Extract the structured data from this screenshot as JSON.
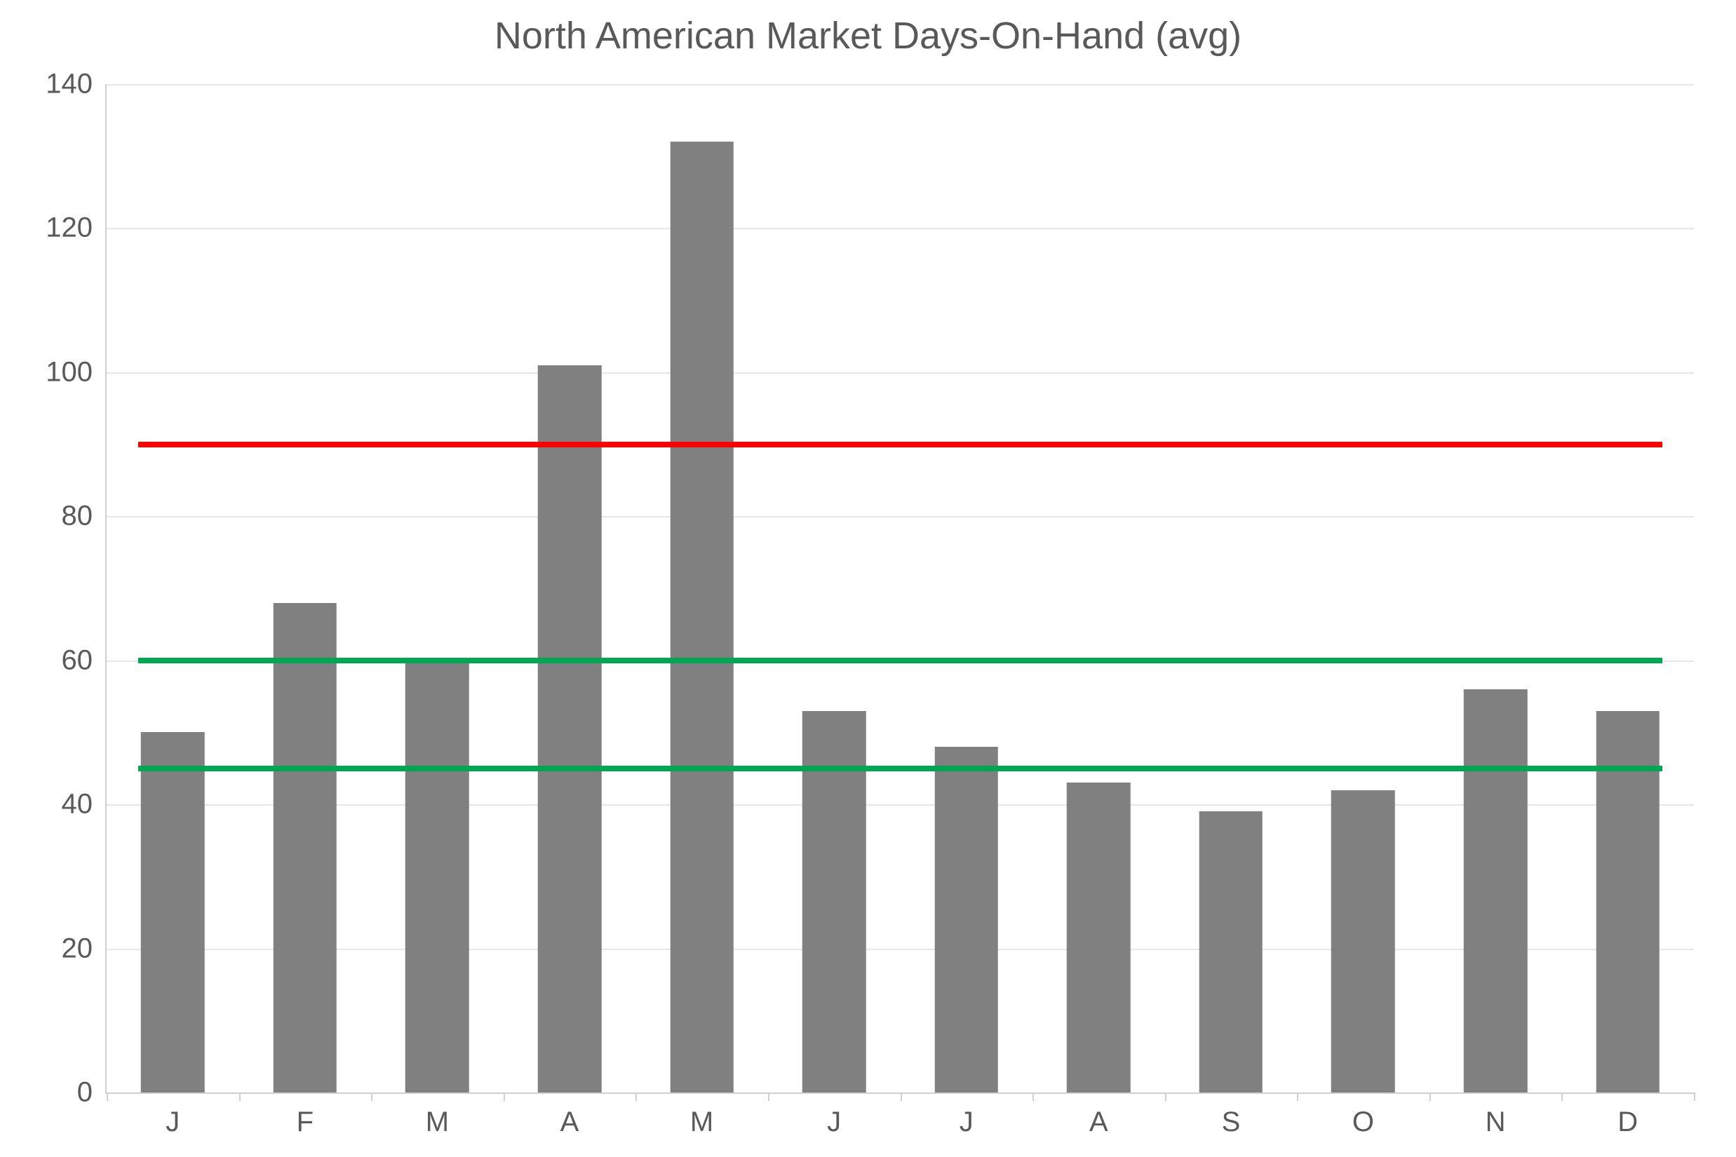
{
  "chart": {
    "type": "bar",
    "title": "North American Market Days-On-Hand (avg)",
    "title_fontsize": 54,
    "title_color": "#595959",
    "background_color": "#ffffff",
    "plot_background": "#ffffff",
    "grid_color": "#e6e6e6",
    "axis_color": "#d0d0d0",
    "categories": [
      "J",
      "F",
      "M",
      "A",
      "M",
      "J",
      "J",
      "A",
      "S",
      "O",
      "N",
      "D"
    ],
    "values": [
      50,
      68,
      60,
      101,
      132,
      53,
      48,
      43,
      39,
      42,
      56,
      53
    ],
    "bar_color": "#808080",
    "bar_width_pct": 48,
    "ylim": [
      0,
      140
    ],
    "ytick_step": 20,
    "yticks": [
      0,
      20,
      40,
      60,
      80,
      100,
      120,
      140
    ],
    "label_fontsize": 40,
    "label_color": "#595959",
    "reference_lines": [
      {
        "value": 90,
        "color": "#ff0000",
        "width": 8,
        "inset_left_pct": 2.0,
        "inset_right_pct": 2.0
      },
      {
        "value": 60,
        "color": "#00a651",
        "width": 8,
        "inset_left_pct": 2.0,
        "inset_right_pct": 2.0
      },
      {
        "value": 45,
        "color": "#00a651",
        "width": 8,
        "inset_left_pct": 2.0,
        "inset_right_pct": 2.0
      }
    ]
  }
}
